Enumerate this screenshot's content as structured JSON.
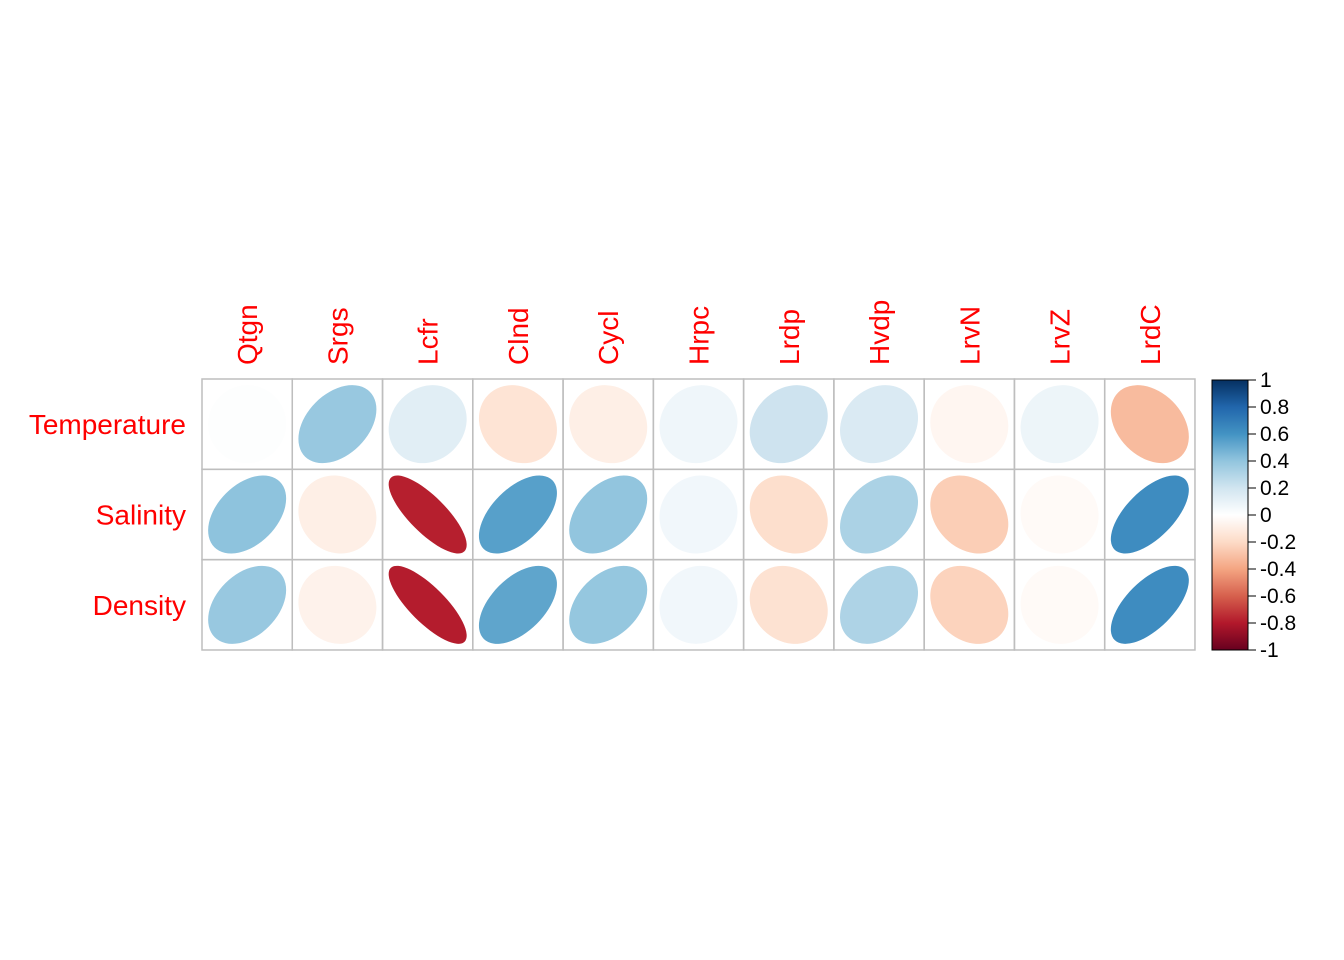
{
  "chart_data": {
    "type": "heatmap",
    "rows": [
      "Temperature",
      "Salinity",
      "Density"
    ],
    "columns": [
      "Qtgn",
      "Srgs",
      "Lcfr",
      "Clnd",
      "Cycl",
      "Hrpc",
      "Lrdp",
      "Hvdp",
      "LrvN",
      "LrvZ",
      "LrdC"
    ],
    "values": [
      [
        0.01,
        0.38,
        0.13,
        -0.15,
        -0.09,
        0.07,
        0.21,
        0.16,
        -0.05,
        0.08,
        -0.32
      ],
      [
        0.41,
        -0.09,
        -0.78,
        0.55,
        0.4,
        0.06,
        -0.18,
        0.32,
        -0.25,
        -0.03,
        0.63
      ],
      [
        0.38,
        -0.07,
        -0.79,
        0.53,
        0.39,
        0.06,
        -0.16,
        0.31,
        -0.23,
        -0.03,
        0.63
      ]
    ],
    "colorbar": {
      "range": [
        -1,
        1
      ],
      "ticks": [
        "1",
        "0.8",
        "0.6",
        "0.4",
        "0.2",
        "0",
        "-0.2",
        "-0.4",
        "-0.6",
        "-0.8",
        "-1"
      ]
    },
    "label_color": "#FF0000",
    "grid_color": "#BEBEBE"
  }
}
